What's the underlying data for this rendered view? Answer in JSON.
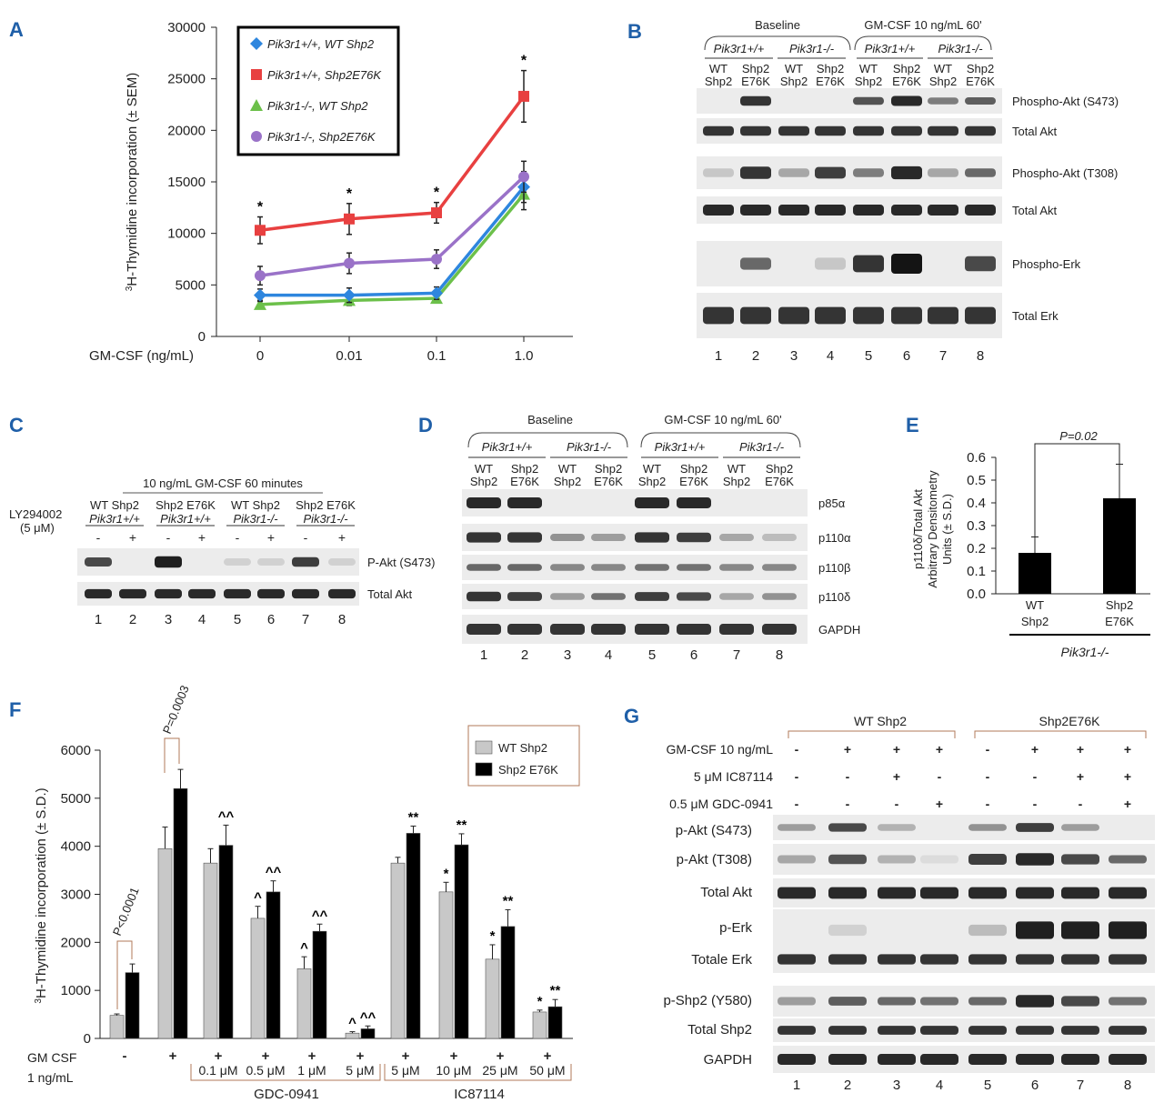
{
  "panels": {
    "A": "A",
    "B": "B",
    "C": "C",
    "D": "D",
    "E": "E",
    "F": "F",
    "G": "G"
  },
  "chart_data": [
    {
      "panel": "A",
      "type": "line",
      "ylabel": "3H-Thymidine incorporation (± SEM)",
      "ylabel_sup": "3",
      "ylabel_rest": "H-Thymidine incorporation (± SEM)",
      "xlabel": "GM-CSF (ng/mL)",
      "categories": [
        "0",
        "0.01",
        "0.1",
        "1.0"
      ],
      "ylim": [
        0,
        30000
      ],
      "yticks": [
        "0",
        "5000",
        "10000",
        "15000",
        "20000",
        "25000",
        "30000"
      ],
      "series": [
        {
          "name": "Pik3r1+/+, WT Shp2",
          "color": "#2e86de",
          "marker": "diamond",
          "values": [
            4000,
            4000,
            4200,
            14500
          ],
          "err": [
            600,
            700,
            600,
            1500
          ]
        },
        {
          "name": "Pik3r1+/+, Shp2E76K",
          "color": "#e84040",
          "marker": "square",
          "values": [
            10300,
            11400,
            12000,
            23300
          ],
          "err": [
            1300,
            1500,
            1000,
            2500
          ]
        },
        {
          "name": "Pik3r1-/-, WT Shp2",
          "color": "#6cc04a",
          "marker": "triangle",
          "values": [
            3100,
            3500,
            3700,
            13800
          ],
          "err": [
            400,
            500,
            400,
            1500
          ]
        },
        {
          "name": "Pik3r1-/-, Shp2E76K",
          "color": "#9a72c8",
          "marker": "circle",
          "values": [
            5900,
            7100,
            7500,
            15500
          ],
          "err": [
            900,
            1000,
            900,
            1500
          ]
        }
      ],
      "annotations": [
        "*",
        "*",
        "*",
        "*"
      ]
    },
    {
      "panel": "E",
      "type": "bar",
      "ylabel_lines": [
        "p110δ/Total Akt",
        "Arbitrary Densitometry",
        "Units (± S.D.)"
      ],
      "categories": [
        [
          "WT",
          "Shp2"
        ],
        [
          "Shp2",
          "E76K"
        ]
      ],
      "values": [
        0.18,
        0.42
      ],
      "err": [
        0.07,
        0.15
      ],
      "ylim": [
        0,
        0.6
      ],
      "yticks": [
        "0.0",
        "0.1",
        "0.2",
        "0.3",
        "0.4",
        "0.5",
        "0.6"
      ],
      "pvalue": "P=0.02",
      "group": "Pik3r1-/-"
    },
    {
      "panel": "F",
      "type": "bar",
      "ylabel": "3H-Thymidine incorporation (± S.D.)",
      "ylabel_sup": "3",
      "ylabel_rest": "H-Thymidine incorporation (± S.D.)",
      "ylim": [
        0,
        6000
      ],
      "yticks": [
        "0",
        "1000",
        "2000",
        "3000",
        "4000",
        "5000",
        "6000"
      ],
      "legend": [
        "WT Shp2",
        "Shp2 E76K"
      ],
      "colors": [
        "#c8c8c8",
        "#000000"
      ],
      "gm_csf_label": [
        "GM CSF",
        "1 ng/mL"
      ],
      "gm": [
        "-",
        "+",
        "+",
        "+",
        "+",
        "+",
        "+",
        "+",
        "+",
        "+"
      ],
      "conc": [
        "",
        "",
        "0.1 μM",
        "0.5 μM",
        "1 μM",
        "5 μM",
        "5 μM",
        "10 μM",
        "25 μM",
        "50 μM"
      ],
      "groups": [
        {
          "name": "GDC-0941"
        },
        {
          "name": "IC87114"
        }
      ],
      "series": [
        {
          "name": "WT Shp2",
          "values": [
            480,
            3950,
            3650,
            2500,
            1450,
            110,
            3650,
            3050,
            1650,
            550
          ],
          "err": [
            30,
            450,
            300,
            250,
            250,
            30,
            120,
            200,
            300,
            40
          ]
        },
        {
          "name": "Shp2 E76K",
          "values": [
            1370,
            5200,
            4020,
            3050,
            2230,
            200,
            4270,
            4030,
            2330,
            660
          ],
          "err": [
            180,
            400,
            420,
            230,
            150,
            60,
            150,
            230,
            350,
            150
          ]
        }
      ],
      "marks_wt": [
        "",
        "",
        "",
        "^",
        "^",
        "^",
        "",
        "*",
        "*",
        "*"
      ],
      "marks_e76k": [
        "",
        "",
        "^^",
        "^^",
        "^^",
        "^^",
        "**",
        "**",
        "**",
        "**"
      ],
      "pvals": [
        "P<0.0001",
        "P=0.0003"
      ]
    }
  ],
  "B": {
    "groups": [
      "Baseline",
      "GM-CSF 10 ng/mL 60'"
    ],
    "geno": [
      "Pik3r1+/+",
      "Pik3r1-/-",
      "Pik3r1+/+",
      "Pik3r1-/-"
    ],
    "lanes_top": [
      "WT",
      "Shp2",
      "WT",
      "Shp2",
      "WT",
      "Shp2",
      "WT",
      "Shp2"
    ],
    "lanes_bot": [
      "Shp2",
      "E76K",
      "Shp2",
      "E76K",
      "Shp2",
      "E76K",
      "Shp2",
      "E76K"
    ],
    "bands": [
      "Phospho-Akt (S473)",
      "Total Akt",
      "Phospho-Akt (T308)",
      "Total Akt",
      "Phospho-Erk",
      "Total Erk"
    ],
    "nums": [
      "1",
      "2",
      "3",
      "4",
      "5",
      "6",
      "7",
      "8"
    ]
  },
  "C": {
    "title": "10 ng/mL GM-CSF 60 minutes",
    "cols": [
      [
        "WT Shp2",
        "Pik3r1+/+"
      ],
      [
        "Shp2 E76K",
        "Pik3r1+/+"
      ],
      [
        "WT Shp2",
        "Pik3r1-/-"
      ],
      [
        "Shp2 E76K",
        "Pik3r1-/-"
      ]
    ],
    "inhib": [
      "LY294002",
      "(5 μM)"
    ],
    "signs": [
      "-",
      "+",
      "-",
      "+",
      "-",
      "+",
      "-",
      "+"
    ],
    "bands": [
      "P-Akt (S473)",
      "Total Akt"
    ],
    "nums": [
      "1",
      "2",
      "3",
      "4",
      "5",
      "6",
      "7",
      "8"
    ]
  },
  "D": {
    "groups": [
      "Baseline",
      "GM-CSF 10 ng/mL 60'"
    ],
    "geno": [
      "Pik3r1+/+",
      "Pik3r1-/-",
      "Pik3r1+/+",
      "Pik3r1-/-"
    ],
    "lanes_top": [
      "WT",
      "Shp2",
      "WT",
      "Shp2",
      "WT",
      "Shp2",
      "WT",
      "Shp2"
    ],
    "lanes_bot": [
      "Shp2",
      "E76K",
      "Shp2",
      "E76K",
      "Shp2",
      "E76K",
      "Shp2",
      "E76K"
    ],
    "bands": [
      "p85α",
      "p110α",
      "p110β",
      "p110δ",
      "GAPDH"
    ],
    "nums": [
      "1",
      "2",
      "3",
      "4",
      "5",
      "6",
      "7",
      "8"
    ]
  },
  "G": {
    "groups": [
      "WT Shp2",
      "Shp2E76K"
    ],
    "conds": [
      {
        "label": "GM-CSF 10 ng/mL",
        "signs": [
          "-",
          "+",
          "+",
          "+",
          "-",
          "+",
          "+",
          "+"
        ]
      },
      {
        "label": "5 μM IC87114",
        "signs": [
          "-",
          "-",
          "+",
          "-",
          "-",
          "-",
          "+",
          "+"
        ]
      },
      {
        "label": "0.5 μM GDC-0941",
        "signs": [
          "-",
          "-",
          "-",
          "+",
          "-",
          "-",
          "-",
          "+"
        ]
      }
    ],
    "bands": [
      "p-Akt (S473)",
      "p-Akt (T308)",
      "Total Akt",
      "p-Erk",
      "Totale Erk",
      "p-Shp2 (Y580)",
      "Total Shp2",
      "GAPDH"
    ],
    "nums": [
      "1",
      "2",
      "3",
      "4",
      "5",
      "6",
      "7",
      "8"
    ]
  }
}
